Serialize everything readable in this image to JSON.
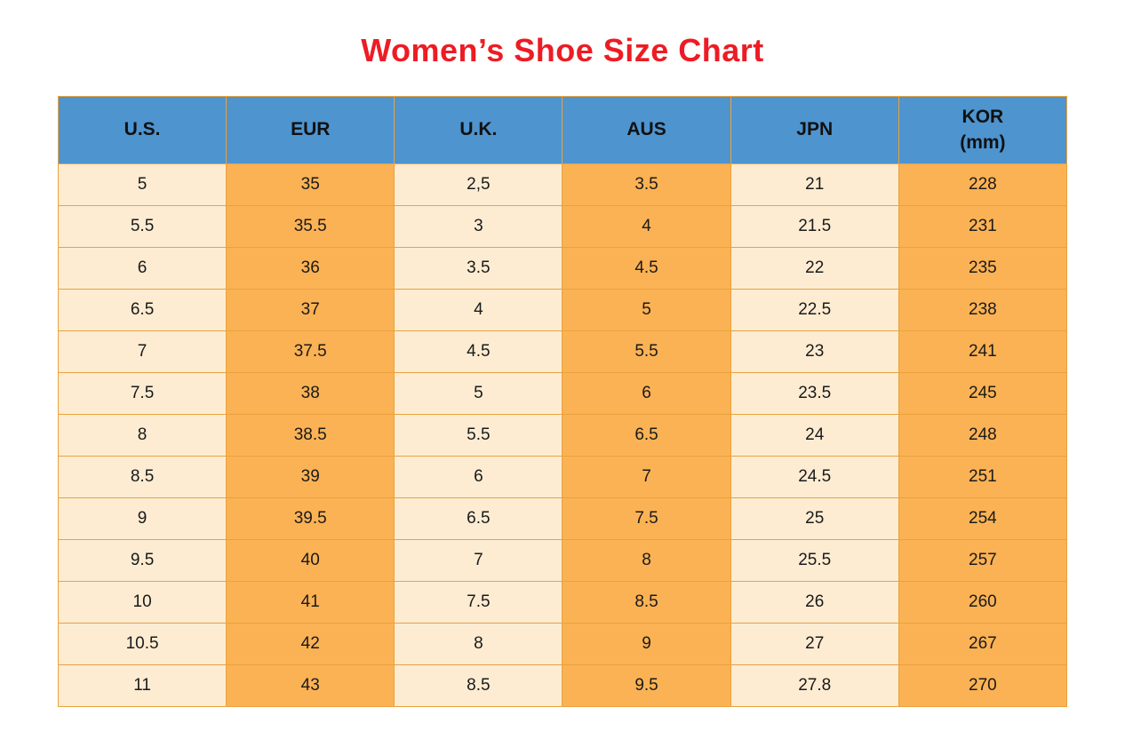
{
  "page": {
    "title": "Women’s Shoe Size Chart"
  },
  "colors": {
    "title_red": "#ed1c24",
    "header_blue": "#4e94cf",
    "column_light": "#fdecd2",
    "column_orange": "#fbb254",
    "border_orange": "#e9a23e",
    "text": "#1a1a1a"
  },
  "chart_data": {
    "type": "table",
    "title": "Women’s Shoe Size Chart",
    "columns": [
      "U.S.",
      "EUR",
      "U.K.",
      "AUS",
      "JPN",
      "KOR\n(mm)"
    ],
    "rows": [
      [
        "5",
        "35",
        "2,5",
        "3.5",
        "21",
        "228"
      ],
      [
        "5.5",
        "35.5",
        "3",
        "4",
        "21.5",
        "231"
      ],
      [
        "6",
        "36",
        "3.5",
        "4.5",
        "22",
        "235"
      ],
      [
        "6.5",
        "37",
        "4",
        "5",
        "22.5",
        "238"
      ],
      [
        "7",
        "37.5",
        "4.5",
        "5.5",
        "23",
        "241"
      ],
      [
        "7.5",
        "38",
        "5",
        "6",
        "23.5",
        "245"
      ],
      [
        "8",
        "38.5",
        "5.5",
        "6.5",
        "24",
        "248"
      ],
      [
        "8.5",
        "39",
        "6",
        "7",
        "24.5",
        "251"
      ],
      [
        "9",
        "39.5",
        "6.5",
        "7.5",
        "25",
        "254"
      ],
      [
        "9.5",
        "40",
        "7",
        "8",
        "25.5",
        "257"
      ],
      [
        "10",
        "41",
        "7.5",
        "8.5",
        "26",
        "260"
      ],
      [
        "10.5",
        "42",
        "8",
        "9",
        "27",
        "267"
      ],
      [
        "11",
        "43",
        "8.5",
        "9.5",
        "27.8",
        "270"
      ]
    ],
    "layout": {
      "column_striping": "alternating light/orange by column",
      "header_position": "top",
      "grid": true
    }
  }
}
